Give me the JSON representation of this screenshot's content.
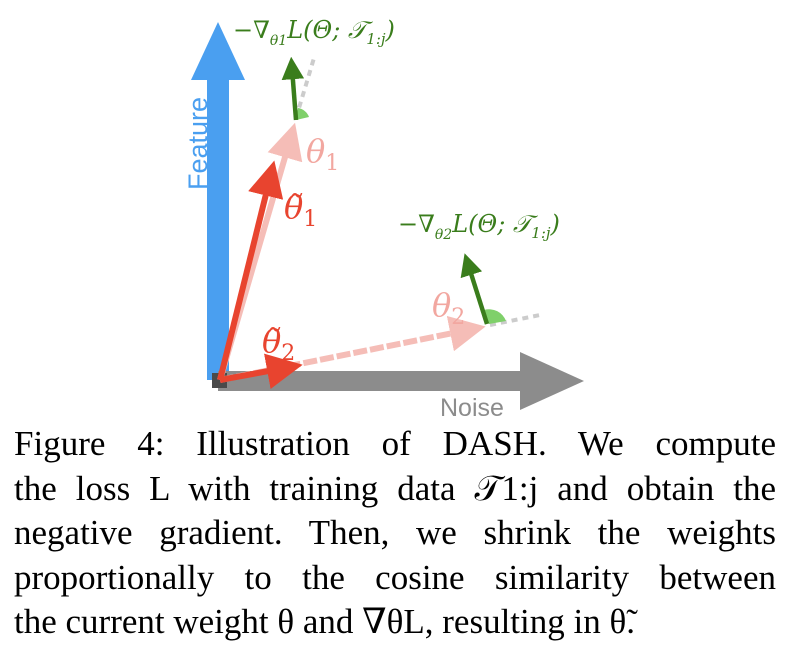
{
  "figure": {
    "axis_feature_label": "Feature",
    "axis_noise_label": "Noise",
    "theta1_label": "θ",
    "theta1_sub": "1",
    "theta1_tilde_label": "θ̃",
    "theta1_tilde_sub": "1",
    "theta2_label": "θ",
    "theta2_sub": "2",
    "theta2_tilde_label": "θ̃",
    "theta2_tilde_sub": "2",
    "grad1_prefix": "−∇",
    "grad1_sub": "θ1",
    "grad1_body": "L(Θ; 𝒯",
    "grad1_sub2": "1:j",
    "grad1_close": ")",
    "grad2_prefix": "−∇",
    "grad2_sub": "θ2",
    "grad2_body": "L(Θ; 𝒯",
    "grad2_sub2": "1:j",
    "grad2_close": ")",
    "colors": {
      "feature_axis": "#4a9ff0",
      "noise_axis": "#8c8c8c",
      "weight_red": "#e8442f",
      "weight_faded": "#f2a7a0",
      "gradient_green": "#3a7d1c",
      "angle_fill": "#7fd06a"
    }
  },
  "caption": {
    "line1": "Figure 4:  Illustration of DASH. We compute",
    "line2": "the loss L with training data 𝒯1:j and obtain the",
    "line3": "negative gradient. Then, we shrink the weights",
    "line4": "proportionally to the cosine similarity between",
    "line5": "the current weight θ and ∇θL, resulting in θ̃."
  }
}
